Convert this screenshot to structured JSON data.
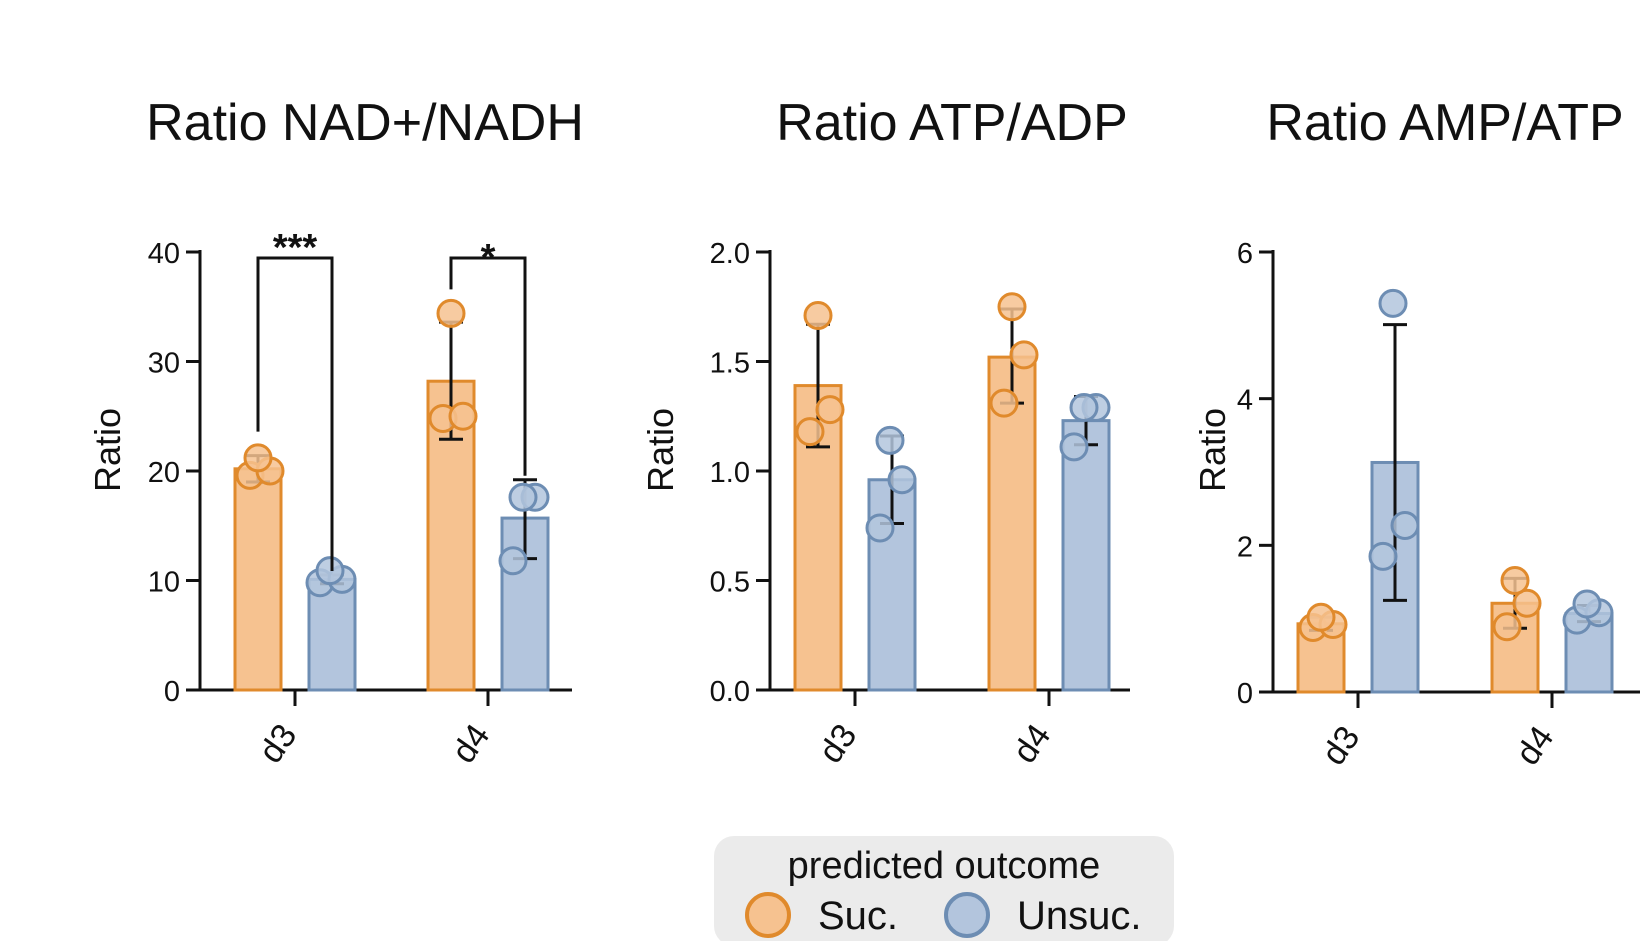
{
  "legend": {
    "title": "predicted outcome",
    "entries": [
      {
        "label": "Suc.",
        "fill": "#f6c290",
        "stroke": "#e08a2c"
      },
      {
        "label": "Unsuc.",
        "fill": "#b3c5dd",
        "stroke": "#6d8db3"
      }
    ],
    "background": "#ebebeb"
  },
  "chart_data": [
    {
      "type": "bar",
      "title": "Ratio NAD+/NADH",
      "ylabel": "Ratio",
      "xlabel": "",
      "categories": [
        "d3",
        "d4"
      ],
      "ylim": [
        0,
        40
      ],
      "yticks": [
        "0",
        "10",
        "20",
        "30",
        "40"
      ],
      "series": [
        {
          "name": "Suc.",
          "values": [
            20.2,
            28.2
          ],
          "err_low": [
            19.0,
            22.9
          ],
          "err_high": [
            21.4,
            33.6
          ],
          "points": [
            [
              19.6,
              20.0,
              21.2
            ],
            [
              24.8,
              25.0,
              34.4
            ]
          ]
        },
        {
          "name": "Unsuc.",
          "values": [
            10.1,
            15.7
          ],
          "err_low": [
            9.7,
            12.0
          ],
          "err_high": [
            10.5,
            19.2
          ],
          "points": [
            [
              9.8,
              10.1,
              10.9
            ],
            [
              11.8,
              17.6,
              17.6
            ]
          ]
        }
      ],
      "significance": [
        {
          "category": "d3",
          "label": "***"
        },
        {
          "category": "d4",
          "label": "*"
        }
      ]
    },
    {
      "type": "bar",
      "title": "Ratio ATP/ADP",
      "ylabel": "Ratio",
      "xlabel": "",
      "categories": [
        "d3",
        "d4"
      ],
      "ylim": [
        0,
        2.0
      ],
      "yticks": [
        "0.0",
        "0.5",
        "1.0",
        "1.5",
        "2.0"
      ],
      "series": [
        {
          "name": "Suc.",
          "values": [
            1.39,
            1.52
          ],
          "err_low": [
            1.11,
            1.31
          ],
          "err_high": [
            1.67,
            1.74
          ],
          "points": [
            [
              1.18,
              1.28,
              1.71
            ],
            [
              1.31,
              1.53,
              1.75
            ]
          ]
        },
        {
          "name": "Unsuc.",
          "values": [
            0.96,
            1.23
          ],
          "err_low": [
            0.76,
            1.12
          ],
          "err_high": [
            1.16,
            1.34
          ],
          "points": [
            [
              0.74,
              0.96,
              1.14
            ],
            [
              1.11,
              1.29,
              1.29
            ]
          ]
        }
      ]
    },
    {
      "type": "bar",
      "title": "Ratio AMP/ATP",
      "ylabel": "Ratio",
      "xlabel": "",
      "categories": [
        "d3",
        "d4"
      ],
      "ylim": [
        0,
        6
      ],
      "yticks": [
        "0",
        "2",
        "4",
        "6"
      ],
      "series": [
        {
          "name": "Suc.",
          "values": [
            0.93,
            1.21
          ],
          "err_low": [
            0.84,
            0.87
          ],
          "err_high": [
            1.02,
            1.55
          ],
          "points": [
            [
              0.88,
              0.92,
              1.02
            ],
            [
              0.89,
              1.21,
              1.52
            ]
          ]
        },
        {
          "name": "Unsuc.",
          "values": [
            3.13,
            1.07
          ],
          "err_low": [
            1.25,
            0.96
          ],
          "err_high": [
            5.01,
            1.18
          ],
          "points": [
            [
              1.85,
              2.27,
              5.3
            ],
            [
              0.98,
              1.08,
              1.2
            ]
          ]
        }
      ]
    }
  ]
}
